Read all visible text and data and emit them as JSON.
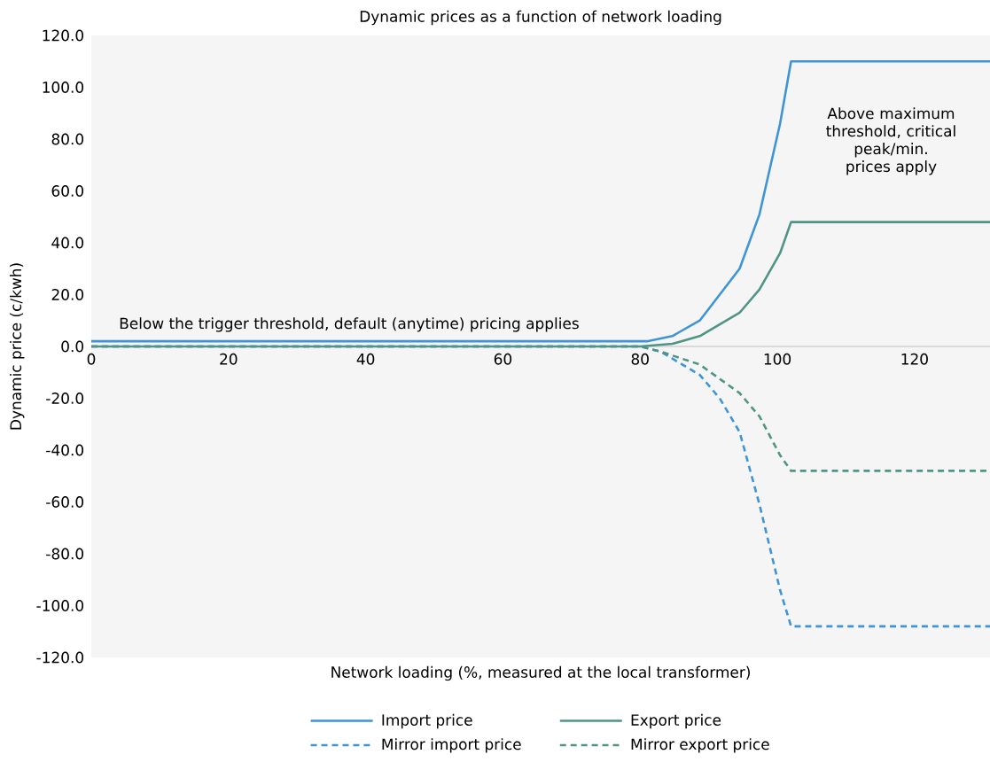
{
  "chart_data": {
    "type": "line",
    "title": "Dynamic prices as a function of network loading",
    "xlabel": "Network loading (%, measured at the local transformer)",
    "ylabel": "Dynamic price (c/kwh)",
    "annotations": [
      "Below the trigger threshold, default (anytime) pricing applies",
      "Above maximum threshold, critical peak/min. prices apply"
    ],
    "xlim": [
      0,
      131
    ],
    "ylim": [
      -120,
      120
    ],
    "xticks": [
      0,
      20,
      40,
      60,
      80,
      100,
      120
    ],
    "yticks": [
      {
        "value": -120,
        "label": "-120.0"
      },
      {
        "value": -100,
        "label": "-100.0"
      },
      {
        "value": -80,
        "label": "-80.0"
      },
      {
        "value": -60,
        "label": "-60.0"
      },
      {
        "value": -40,
        "label": "-40.0"
      },
      {
        "value": -20,
        "label": "-20.0"
      },
      {
        "value": 0,
        "label": "0.0"
      },
      {
        "value": 20,
        "label": "20.0"
      },
      {
        "value": 40,
        "label": "40.0"
      },
      {
        "value": 60,
        "label": "60.0"
      },
      {
        "value": 80,
        "label": "80.0"
      },
      {
        "value": 100,
        "label": "100.0"
      },
      {
        "value": 120,
        "label": "120.0"
      }
    ],
    "legend": "bottom",
    "series": [
      {
        "name": "Import price",
        "color": "#3f94d6",
        "line_style": "solid",
        "x": [
          0,
          81,
          84.7,
          88.7,
          94.5,
          97.4,
          100.4,
          102,
          131
        ],
        "values": [
          2,
          2,
          4,
          10,
          30,
          51,
          86,
          110,
          110
        ]
      },
      {
        "name": "Export price",
        "color": "#4f9484",
        "line_style": "solid",
        "x": [
          0,
          80,
          84.7,
          88.7,
          94.5,
          97.4,
          100.4,
          102,
          131
        ],
        "values": [
          0,
          0,
          1,
          4,
          13,
          22,
          36,
          48,
          48
        ]
      },
      {
        "name": "Mirror import price",
        "color": "#3f94d6",
        "line_style": "dashed",
        "x": [
          0,
          80,
          83,
          88.7,
          91.6,
          94.5,
          97.4,
          100.4,
          102,
          131
        ],
        "values": [
          0,
          0,
          -2,
          -11,
          -20,
          -33,
          -61,
          -94,
          -108,
          -108
        ]
      },
      {
        "name": "Mirror export price",
        "color": "#4f9484",
        "line_style": "dashed",
        "x": [
          0,
          80,
          83,
          88.7,
          94.5,
          97.4,
          100.4,
          102,
          131
        ],
        "values": [
          0,
          0,
          -2,
          -7,
          -18,
          -27,
          -42,
          -48,
          -48
        ]
      }
    ]
  }
}
